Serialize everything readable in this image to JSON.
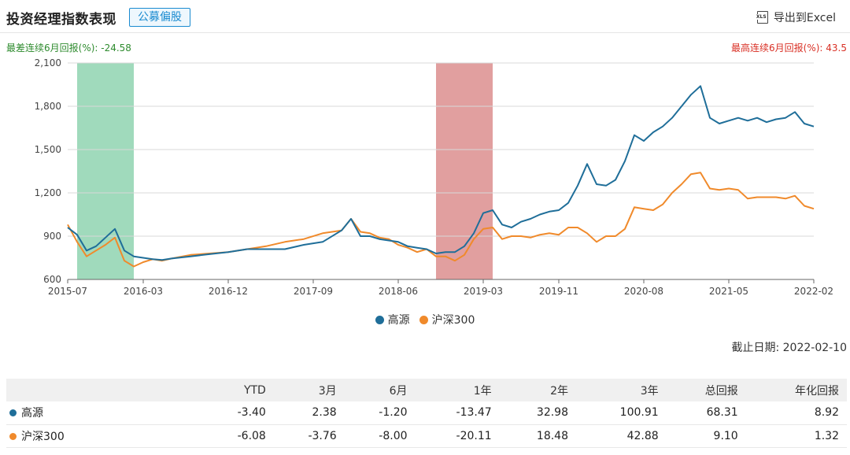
{
  "header": {
    "title": "投资经理指数表现",
    "tag": "公募偏股",
    "export_label": "导出到Excel",
    "export_icon": "xls-file-icon",
    "export_icon_text": "XLS"
  },
  "streaks": {
    "worst": "最差连续6月回报(%): -24.58",
    "best": "最高连续6月回报(%): 43.5"
  },
  "colors": {
    "gaoyuan": "#1f6e99",
    "hs300": "#f08a2b",
    "worst_band": "#8fd3b0",
    "best_band": "#dc8e8e",
    "worst_text": "#2e8b2e",
    "best_text": "#d93025"
  },
  "chart_data": {
    "type": "line",
    "xticks": [
      "2015-07",
      "2016-03",
      "2016-12",
      "2017-09",
      "2018-06",
      "2019-03",
      "2019-11",
      "2020-08",
      "2021-05",
      "2022-02"
    ],
    "yticks": [
      "600",
      "900",
      "1,200",
      "1,500",
      "1,800",
      "2,100"
    ],
    "ylim": [
      600,
      2100
    ],
    "grid": true,
    "legend_position": "bottom-center",
    "shaded_periods": [
      {
        "label": "worst-6-month",
        "start": "2015-08",
        "end": "2016-02"
      },
      {
        "label": "best-6-month",
        "start": "2018-10",
        "end": "2019-04"
      }
    ],
    "series": [
      {
        "name": "高源",
        "points": [
          [
            "2015-07",
            960
          ],
          [
            "2015-08",
            910
          ],
          [
            "2015-09",
            800
          ],
          [
            "2015-10",
            830
          ],
          [
            "2015-11",
            890
          ],
          [
            "2015-12",
            950
          ],
          [
            "2016-01",
            800
          ],
          [
            "2016-02",
            760
          ],
          [
            "2016-03",
            750
          ],
          [
            "2016-04",
            740
          ],
          [
            "2016-05",
            735
          ],
          [
            "2016-06",
            745
          ],
          [
            "2016-08",
            760
          ],
          [
            "2016-10",
            775
          ],
          [
            "2016-12",
            790
          ],
          [
            "2017-02",
            810
          ],
          [
            "2017-04",
            810
          ],
          [
            "2017-06",
            810
          ],
          [
            "2017-08",
            840
          ],
          [
            "2017-10",
            860
          ],
          [
            "2017-12",
            940
          ],
          [
            "2018-01",
            1020
          ],
          [
            "2018-02",
            900
          ],
          [
            "2018-03",
            900
          ],
          [
            "2018-04",
            880
          ],
          [
            "2018-05",
            870
          ],
          [
            "2018-06",
            860
          ],
          [
            "2018-07",
            830
          ],
          [
            "2018-08",
            820
          ],
          [
            "2018-09",
            810
          ],
          [
            "2018-10",
            780
          ],
          [
            "2018-11",
            790
          ],
          [
            "2018-12",
            790
          ],
          [
            "2019-01",
            830
          ],
          [
            "2019-02",
            920
          ],
          [
            "2019-03",
            1060
          ],
          [
            "2019-04",
            1080
          ],
          [
            "2019-05",
            980
          ],
          [
            "2019-06",
            960
          ],
          [
            "2019-07",
            1000
          ],
          [
            "2019-08",
            1020
          ],
          [
            "2019-09",
            1050
          ],
          [
            "2019-10",
            1070
          ],
          [
            "2019-11",
            1080
          ],
          [
            "2019-12",
            1130
          ],
          [
            "2020-01",
            1250
          ],
          [
            "2020-02",
            1400
          ],
          [
            "2020-03",
            1260
          ],
          [
            "2020-04",
            1250
          ],
          [
            "2020-05",
            1290
          ],
          [
            "2020-06",
            1420
          ],
          [
            "2020-07",
            1600
          ],
          [
            "2020-08",
            1560
          ],
          [
            "2020-09",
            1620
          ],
          [
            "2020-10",
            1660
          ],
          [
            "2020-11",
            1720
          ],
          [
            "2020-12",
            1800
          ],
          [
            "2021-01",
            1880
          ],
          [
            "2021-02",
            1940
          ],
          [
            "2021-03",
            1720
          ],
          [
            "2021-04",
            1680
          ],
          [
            "2021-05",
            1700
          ],
          [
            "2021-06",
            1720
          ],
          [
            "2021-07",
            1700
          ],
          [
            "2021-08",
            1720
          ],
          [
            "2021-09",
            1690
          ],
          [
            "2021-10",
            1710
          ],
          [
            "2021-11",
            1720
          ],
          [
            "2021-12",
            1760
          ],
          [
            "2022-01",
            1680
          ],
          [
            "2022-02",
            1660
          ]
        ]
      },
      {
        "name": "沪深300",
        "points": [
          [
            "2015-07",
            980
          ],
          [
            "2015-08",
            860
          ],
          [
            "2015-09",
            760
          ],
          [
            "2015-10",
            800
          ],
          [
            "2015-11",
            840
          ],
          [
            "2015-12",
            890
          ],
          [
            "2016-01",
            730
          ],
          [
            "2016-02",
            690
          ],
          [
            "2016-03",
            720
          ],
          [
            "2016-04",
            740
          ],
          [
            "2016-05",
            730
          ],
          [
            "2016-06",
            745
          ],
          [
            "2016-08",
            770
          ],
          [
            "2016-10",
            780
          ],
          [
            "2016-12",
            790
          ],
          [
            "2017-02",
            810
          ],
          [
            "2017-04",
            830
          ],
          [
            "2017-06",
            860
          ],
          [
            "2017-08",
            880
          ],
          [
            "2017-10",
            920
          ],
          [
            "2017-12",
            940
          ],
          [
            "2018-01",
            1020
          ],
          [
            "2018-02",
            930
          ],
          [
            "2018-03",
            920
          ],
          [
            "2018-04",
            890
          ],
          [
            "2018-05",
            880
          ],
          [
            "2018-06",
            840
          ],
          [
            "2018-07",
            820
          ],
          [
            "2018-08",
            790
          ],
          [
            "2018-09",
            810
          ],
          [
            "2018-10",
            760
          ],
          [
            "2018-11",
            760
          ],
          [
            "2018-12",
            730
          ],
          [
            "2019-01",
            770
          ],
          [
            "2019-02",
            880
          ],
          [
            "2019-03",
            950
          ],
          [
            "2019-04",
            960
          ],
          [
            "2019-05",
            880
          ],
          [
            "2019-06",
            900
          ],
          [
            "2019-07",
            900
          ],
          [
            "2019-08",
            890
          ],
          [
            "2019-09",
            910
          ],
          [
            "2019-10",
            920
          ],
          [
            "2019-11",
            910
          ],
          [
            "2019-12",
            960
          ],
          [
            "2020-01",
            960
          ],
          [
            "2020-02",
            920
          ],
          [
            "2020-03",
            860
          ],
          [
            "2020-04",
            900
          ],
          [
            "2020-05",
            900
          ],
          [
            "2020-06",
            950
          ],
          [
            "2020-07",
            1100
          ],
          [
            "2020-08",
            1090
          ],
          [
            "2020-09",
            1080
          ],
          [
            "2020-10",
            1120
          ],
          [
            "2020-11",
            1200
          ],
          [
            "2020-12",
            1260
          ],
          [
            "2021-01",
            1330
          ],
          [
            "2021-02",
            1340
          ],
          [
            "2021-03",
            1230
          ],
          [
            "2021-04",
            1220
          ],
          [
            "2021-05",
            1230
          ],
          [
            "2021-06",
            1220
          ],
          [
            "2021-07",
            1160
          ],
          [
            "2021-08",
            1170
          ],
          [
            "2021-09",
            1170
          ],
          [
            "2021-10",
            1170
          ],
          [
            "2021-11",
            1160
          ],
          [
            "2021-12",
            1180
          ],
          [
            "2022-01",
            1110
          ],
          [
            "2022-02",
            1090
          ]
        ]
      }
    ]
  },
  "legend": {
    "items": [
      {
        "name": "高源",
        "color": "#1f6e99"
      },
      {
        "name": "沪深300",
        "color": "#f08a2b"
      }
    ]
  },
  "as_of": "截止日期: 2022-02-10",
  "returns_table": {
    "headers": [
      "",
      "YTD",
      "3月",
      "6月",
      "1年",
      "2年",
      "3年",
      "总回报",
      "年化回报"
    ],
    "rows": [
      {
        "name": "高源",
        "color": "#1f6e99",
        "values": [
          "-3.40",
          "2.38",
          "-1.20",
          "-13.47",
          "32.98",
          "100.91",
          "68.31",
          "8.92"
        ]
      },
      {
        "name": "沪深300",
        "color": "#f08a2b",
        "values": [
          "-6.08",
          "-3.76",
          "-8.00",
          "-20.11",
          "18.48",
          "42.88",
          "9.10",
          "1.32"
        ]
      }
    ]
  }
}
